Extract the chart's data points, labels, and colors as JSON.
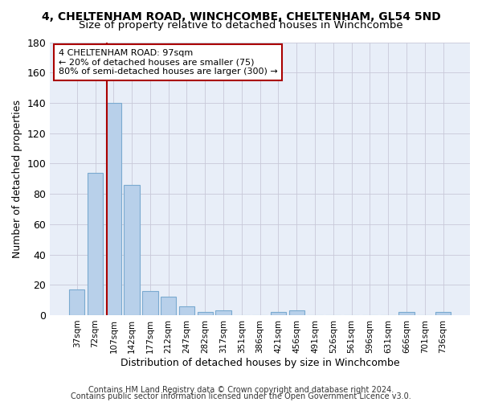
{
  "title_line1": "4, CHELTENHAM ROAD, WINCHCOMBE, CHELTENHAM, GL54 5ND",
  "title_line2": "Size of property relative to detached houses in Winchcombe",
  "xlabel": "Distribution of detached houses by size in Winchcombe",
  "ylabel": "Number of detached properties",
  "bar_labels": [
    "37sqm",
    "72sqm",
    "107sqm",
    "142sqm",
    "177sqm",
    "212sqm",
    "247sqm",
    "282sqm",
    "317sqm",
    "351sqm",
    "386sqm",
    "421sqm",
    "456sqm",
    "491sqm",
    "526sqm",
    "561sqm",
    "596sqm",
    "631sqm",
    "666sqm",
    "701sqm",
    "736sqm"
  ],
  "bar_values": [
    17,
    94,
    140,
    86,
    16,
    12,
    6,
    2,
    3,
    0,
    0,
    2,
    3,
    0,
    0,
    0,
    0,
    0,
    2,
    0,
    2
  ],
  "bar_color": "#b8d0ea",
  "bar_edge_color": "#7aaad0",
  "ylim": [
    0,
    180
  ],
  "yticks": [
    0,
    20,
    40,
    60,
    80,
    100,
    120,
    140,
    160,
    180
  ],
  "vline_x": 1.62,
  "vline_color": "#aa0000",
  "annotation_text": "4 CHELTENHAM ROAD: 97sqm\n← 20% of detached houses are smaller (75)\n80% of semi-detached houses are larger (300) →",
  "annotation_box_color": "#ffffff",
  "annotation_box_edge": "#aa0000",
  "footer_line1": "Contains HM Land Registry data © Crown copyright and database right 2024.",
  "footer_line2": "Contains public sector information licensed under the Open Government Licence v3.0.",
  "background_color": "#e8eef8",
  "grid_color": "#c8c8d8",
  "title_fontsize": 10,
  "subtitle_fontsize": 9.5,
  "annotation_fontsize": 8,
  "footer_fontsize": 7
}
